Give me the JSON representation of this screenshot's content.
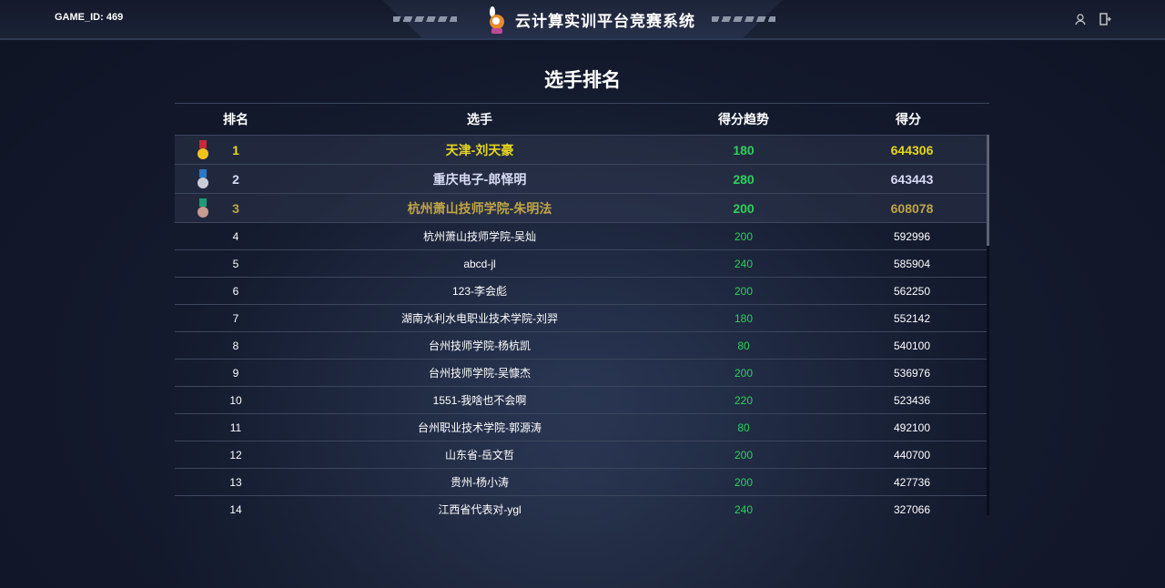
{
  "header": {
    "game_id_label": "GAME_ID:",
    "game_id": "469",
    "title": "云计算实训平台竞赛系统",
    "icons": [
      "user-icon",
      "logout-icon"
    ]
  },
  "page_title": "选手排名",
  "columns": [
    "排名",
    "选手",
    "得分趋势",
    "得分"
  ],
  "colors": {
    "gold": "#e6d51e",
    "silver": "#d8dcf5",
    "bronze": "#c0a545",
    "trend": "#2fd05a",
    "text": "#ffffff"
  },
  "rows": [
    {
      "rank": "1",
      "player": "天津-刘天豪",
      "trend": "180",
      "score": "644306"
    },
    {
      "rank": "2",
      "player": "重庆电子-郎怿明",
      "trend": "280",
      "score": "643443"
    },
    {
      "rank": "3",
      "player": "杭州萧山技师学院-朱明法",
      "trend": "200",
      "score": "608078"
    },
    {
      "rank": "4",
      "player": "杭州萧山技师学院-吴灿",
      "trend": "200",
      "score": "592996"
    },
    {
      "rank": "5",
      "player": "abcd-jl",
      "trend": "240",
      "score": "585904"
    },
    {
      "rank": "6",
      "player": "123-李会彪",
      "trend": "200",
      "score": "562250"
    },
    {
      "rank": "7",
      "player": "湖南水利水电职业技术学院-刘羿",
      "trend": "180",
      "score": "552142"
    },
    {
      "rank": "8",
      "player": "台州技师学院-杨杭凯",
      "trend": "80",
      "score": "540100"
    },
    {
      "rank": "9",
      "player": "台州技师学院-吴慷杰",
      "trend": "200",
      "score": "536976"
    },
    {
      "rank": "10",
      "player": "1551-我啥也不会啊",
      "trend": "220",
      "score": "523436"
    },
    {
      "rank": "11",
      "player": "台州职业技术学院-郭源涛",
      "trend": "80",
      "score": "492100"
    },
    {
      "rank": "12",
      "player": "山东省-岳文哲",
      "trend": "200",
      "score": "440700"
    },
    {
      "rank": "13",
      "player": "贵州-杨小涛",
      "trend": "200",
      "score": "427736"
    },
    {
      "rank": "14",
      "player": "江西省代表对-ygl",
      "trend": "240",
      "score": "327066"
    }
  ]
}
